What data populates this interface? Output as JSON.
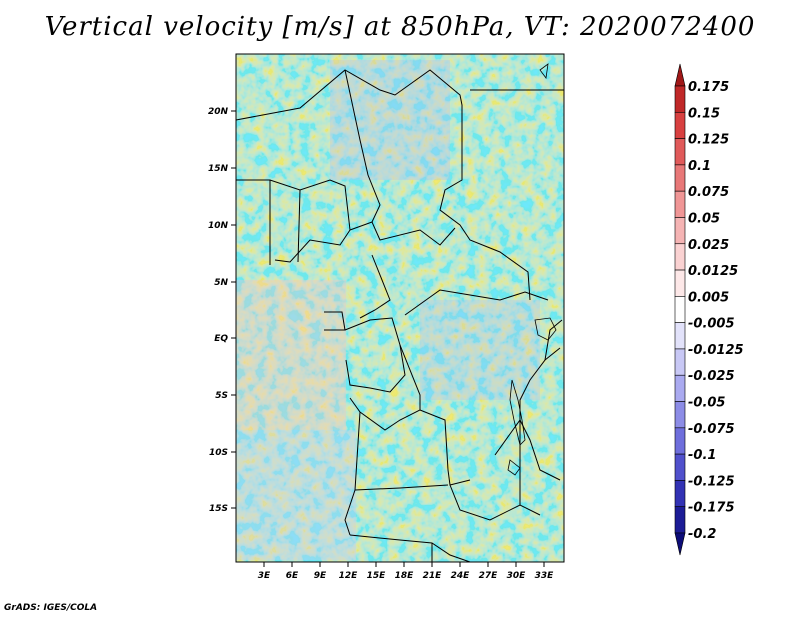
{
  "title": "Vertical velocity [m/s] at 850hPa, VT: 2020072400",
  "footer": "GrADS: IGES/COLA",
  "map": {
    "lat_labels": [
      "20N",
      "15N",
      "10N",
      "5N",
      "EQ",
      "5S",
      "10S",
      "15S"
    ],
    "lon_labels": [
      "3E",
      "6E",
      "9E",
      "12E",
      "15E",
      "18E",
      "21E",
      "24E",
      "27E",
      "30E",
      "33E"
    ]
  },
  "colorbar": {
    "labels": [
      "0.175",
      "0.15",
      "0.125",
      "0.1",
      "0.075",
      "0.05",
      "0.025",
      "0.0125",
      "0.005",
      "-0.005",
      "-0.0125",
      "-0.025",
      "-0.05",
      "-0.075",
      "-0.1",
      "-0.125",
      "-0.175",
      "-0.2"
    ],
    "colors": [
      "#a01818",
      "#c02828",
      "#d84040",
      "#e05a5a",
      "#e87878",
      "#f09696",
      "#f5b4b4",
      "#fad2d2",
      "#fde8e8",
      "#ffffff",
      "#e2e2fa",
      "#c8c8f5",
      "#aaaaf0",
      "#8c8ce6",
      "#6e6edc",
      "#5050cc",
      "#3232b4",
      "#1c1c96",
      "#0c0c78"
    ]
  }
}
